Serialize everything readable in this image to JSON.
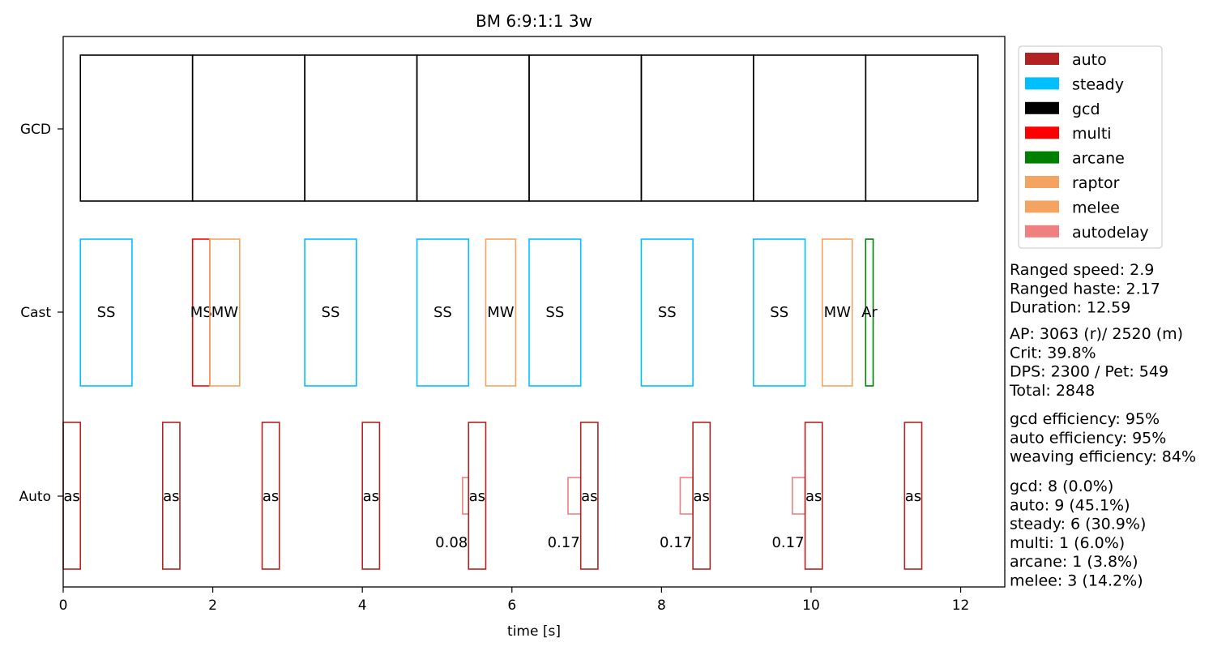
{
  "chart_data": {
    "type": "broken_barh",
    "title": "BM 6:9:1:1 3w",
    "xlabel": "time [s]",
    "ylabel": "",
    "xlim": [
      0,
      12.59
    ],
    "xticks": [
      "0",
      "2",
      "4",
      "6",
      "8",
      "10",
      "12"
    ],
    "lanes": [
      "GCD",
      "Cast",
      "Auto"
    ],
    "grid": false,
    "legend_placement": "outside-right-top",
    "legend": [
      {
        "name": "auto",
        "color": "#b22222"
      },
      {
        "name": "steady",
        "color": "#00bfff"
      },
      {
        "name": "gcd",
        "color": "#000000"
      },
      {
        "name": "multi",
        "color": "#ff0000"
      },
      {
        "name": "arcane",
        "color": "#008000"
      },
      {
        "name": "raptor",
        "color": "#f4a460"
      },
      {
        "name": "melee",
        "color": "#f4a460"
      },
      {
        "name": "autodelay",
        "color": "#f08080"
      }
    ],
    "events": [
      {
        "lane": "GCD",
        "type": "gcd",
        "start": 0.23,
        "duration": 1.5,
        "label": ""
      },
      {
        "lane": "GCD",
        "type": "gcd",
        "start": 1.73,
        "duration": 1.5,
        "label": ""
      },
      {
        "lane": "GCD",
        "type": "gcd",
        "start": 3.23,
        "duration": 1.5,
        "label": ""
      },
      {
        "lane": "GCD",
        "type": "gcd",
        "start": 4.73,
        "duration": 1.5,
        "label": ""
      },
      {
        "lane": "GCD",
        "type": "gcd",
        "start": 6.23,
        "duration": 1.5,
        "label": ""
      },
      {
        "lane": "GCD",
        "type": "gcd",
        "start": 7.73,
        "duration": 1.5,
        "label": ""
      },
      {
        "lane": "GCD",
        "type": "gcd",
        "start": 9.23,
        "duration": 1.5,
        "label": ""
      },
      {
        "lane": "GCD",
        "type": "gcd",
        "start": 10.73,
        "duration": 1.5,
        "label": ""
      },
      {
        "lane": "Cast",
        "type": "steady",
        "start": 0.23,
        "duration": 0.69,
        "label": "SS"
      },
      {
        "lane": "Cast",
        "type": "multi",
        "start": 1.73,
        "duration": 0.23,
        "label": "MS"
      },
      {
        "lane": "Cast",
        "type": "melee",
        "start": 1.96,
        "duration": 0.4,
        "label": "MW"
      },
      {
        "lane": "Cast",
        "type": "steady",
        "start": 3.23,
        "duration": 0.69,
        "label": "SS"
      },
      {
        "lane": "Cast",
        "type": "steady",
        "start": 4.73,
        "duration": 0.69,
        "label": "SS"
      },
      {
        "lane": "Cast",
        "type": "melee",
        "start": 5.65,
        "duration": 0.4,
        "label": "MW"
      },
      {
        "lane": "Cast",
        "type": "steady",
        "start": 6.23,
        "duration": 0.69,
        "label": "SS"
      },
      {
        "lane": "Cast",
        "type": "steady",
        "start": 7.73,
        "duration": 0.69,
        "label": "SS"
      },
      {
        "lane": "Cast",
        "type": "steady",
        "start": 9.23,
        "duration": 0.69,
        "label": "SS"
      },
      {
        "lane": "Cast",
        "type": "melee",
        "start": 10.15,
        "duration": 0.4,
        "label": "MW"
      },
      {
        "lane": "Cast",
        "type": "arcane",
        "start": 10.73,
        "duration": 0.1,
        "label": "Ar"
      },
      {
        "lane": "Auto",
        "type": "auto",
        "start": 0.0,
        "duration": 0.23,
        "label": "as"
      },
      {
        "lane": "Auto",
        "type": "auto",
        "start": 1.33,
        "duration": 0.23,
        "label": "as"
      },
      {
        "lane": "Auto",
        "type": "auto",
        "start": 2.66,
        "duration": 0.23,
        "label": "as"
      },
      {
        "lane": "Auto",
        "type": "auto",
        "start": 4.0,
        "duration": 0.23,
        "label": "as"
      },
      {
        "lane": "Auto",
        "type": "autodelay",
        "start": 5.34,
        "duration": 0.08,
        "label": "0.08"
      },
      {
        "lane": "Auto",
        "type": "auto",
        "start": 5.42,
        "duration": 0.23,
        "label": "as"
      },
      {
        "lane": "Auto",
        "type": "autodelay",
        "start": 6.75,
        "duration": 0.17,
        "label": "0.17"
      },
      {
        "lane": "Auto",
        "type": "auto",
        "start": 6.92,
        "duration": 0.23,
        "label": "as"
      },
      {
        "lane": "Auto",
        "type": "autodelay",
        "start": 8.25,
        "duration": 0.17,
        "label": "0.17"
      },
      {
        "lane": "Auto",
        "type": "auto",
        "start": 8.42,
        "duration": 0.23,
        "label": "as"
      },
      {
        "lane": "Auto",
        "type": "autodelay",
        "start": 9.75,
        "duration": 0.17,
        "label": "0.17"
      },
      {
        "lane": "Auto",
        "type": "auto",
        "start": 9.92,
        "duration": 0.23,
        "label": "as"
      },
      {
        "lane": "Auto",
        "type": "auto",
        "start": 11.25,
        "duration": 0.23,
        "label": "as"
      }
    ],
    "annotations": [
      [
        "Ranged speed: 2.9",
        "Ranged haste: 2.17",
        "Duration: 12.59"
      ],
      [
        "AP: 3063 (r)/ 2520 (m)",
        "Crit: 39.8%",
        "DPS: 2300 / Pet: 549",
        "Total: 2848"
      ],
      [
        "gcd efficiency: 95%",
        "auto efficiency: 95%",
        "weaving efficiency: 84%"
      ],
      [
        "gcd: 8 (0.0%)",
        "auto: 9 (45.1%)",
        "steady: 6 (30.9%)",
        "multi: 1 (6.0%)",
        "arcane: 1 (3.8%)",
        "melee: 3 (14.2%)"
      ]
    ]
  }
}
